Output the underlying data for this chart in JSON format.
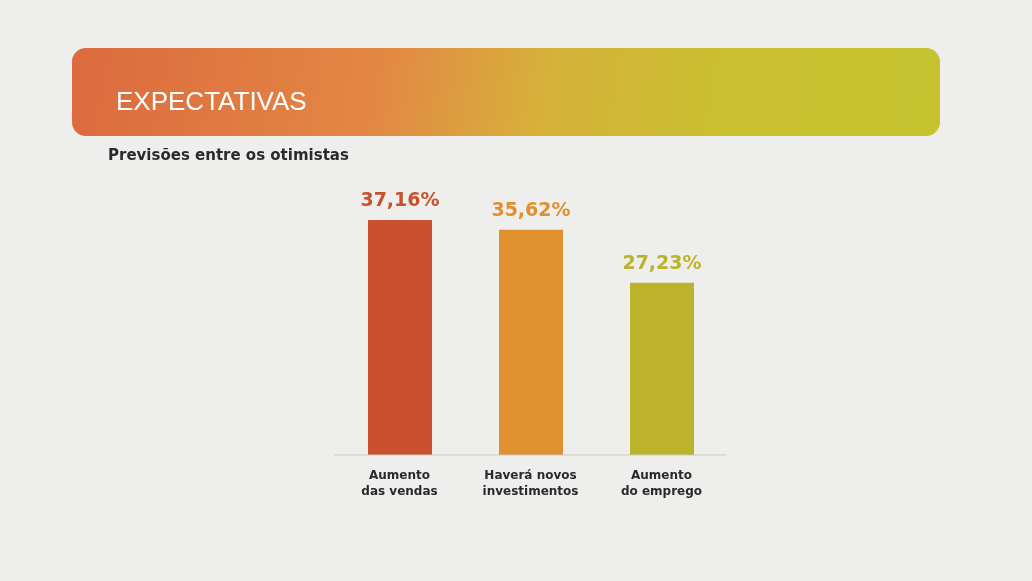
{
  "chart_data": {
    "type": "bar",
    "title": "EXPECTATIVAS",
    "subtitle": "Previsões entre os otimistas",
    "categories": [
      "Aumento das vendas",
      "Haverá novos investimentos",
      "Aumento do emprego"
    ],
    "values": [
      37.16,
      35.62,
      27.23
    ],
    "colors": [
      "#c9512e",
      "#e0912f",
      "#bdb32a"
    ],
    "value_labels": [
      "37,16%",
      "35,62%",
      "27,23%"
    ]
  }
}
